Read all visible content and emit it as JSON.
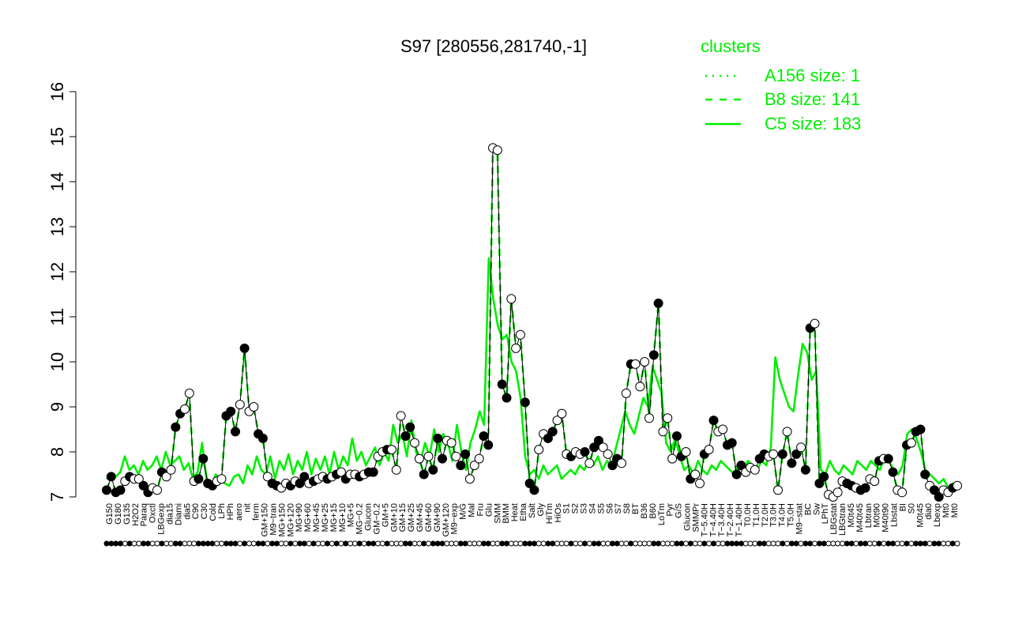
{
  "chart_data": {
    "type": "line",
    "title": "S97 [280556,281740,-1]",
    "xlabel": "",
    "ylabel": "",
    "ylim": [
      7,
      16
    ],
    "yticks": [
      7,
      8,
      9,
      10,
      11,
      12,
      13,
      14,
      15,
      16
    ],
    "xtick_labels": [
      "G150",
      "G180",
      "G135",
      "H2O2",
      "Paraq",
      "Oxctl",
      "LBGexp",
      "dia15",
      "Diami",
      "dia5",
      "C90",
      "C30",
      "Cold",
      "LPh",
      "HPh",
      "aero",
      "nit",
      "ferm",
      "GM+150",
      "M9−tran",
      "MG+150",
      "MG+120",
      "MG+90",
      "MG+60",
      "MG+45",
      "MG+25",
      "MG+15",
      "MG+10",
      "MG+5",
      "MG−0.2",
      "Glucon",
      "GM−0.2",
      "GM+5",
      "GM+10",
      "GM+15",
      "GM+25",
      "GM+45",
      "GM+60",
      "GM+90",
      "GM+120",
      "M9−exp",
      "M/G",
      "Mal",
      "Fru",
      "Glu",
      "SMM",
      "BMM",
      "Heat",
      "Etha",
      "Salt",
      "Gly",
      "HiTm",
      "HiOs",
      "S1",
      "S2",
      "S3",
      "S4",
      "S5",
      "S6",
      "S7",
      "S8",
      "BT",
      "B36",
      "B60",
      "LoTm",
      "Pyr",
      "G/S",
      "Glucon",
      "SMMPr",
      "T−5.40H",
      "T−4.40H",
      "T−3.40H",
      "T−2.40H",
      "T−1.40H",
      "T0.0H",
      "T1.0H",
      "T2.0H",
      "T3.0H",
      "T4.0H",
      "T5.0H",
      "M9−stat",
      "BC",
      "Sw",
      "LPhT",
      "LBGstat",
      "LBGtran",
      "M0t45",
      "M40t45",
      "Lbtran",
      "M0t90",
      "M40t90",
      "Lbstat",
      "BI",
      "S0",
      "M0t45",
      "dia0",
      "Lbexp",
      "Mt0",
      "Mt0"
    ],
    "legend": {
      "title": "clusters",
      "placement": "top-right",
      "entries": [
        {
          "label": "A156 size: 1",
          "style": "dotted"
        },
        {
          "label": "B8 size: 141",
          "style": "dashed"
        },
        {
          "label": "C5 size: 183",
          "style": "solid"
        }
      ]
    },
    "colors": {
      "accent": "#00ee00",
      "line": "#000000",
      "axis": "#000000"
    },
    "series": [
      {
        "name": "A156 size: 1",
        "style": "dotted",
        "values": [
          7.15,
          7.45,
          7.1,
          7.15,
          7.35,
          7.45,
          7.4,
          7.4,
          7.25,
          7.1,
          7.2,
          7.15,
          7.55,
          7.45,
          7.6,
          8.55,
          8.85,
          8.95,
          9.3,
          7.35,
          7.4,
          7.85,
          7.3,
          7.25,
          7.35,
          7.4,
          8.8,
          8.9,
          8.45,
          9.05,
          10.3,
          8.9,
          9.0,
          8.4,
          8.3,
          7.45,
          7.3,
          7.25,
          7.2,
          7.3,
          7.25,
          7.35,
          7.3,
          7.45,
          7.3,
          7.35,
          7.4,
          7.45,
          7.4,
          7.45,
          7.5,
          7.55,
          7.4,
          7.5,
          7.5,
          7.45,
          7.5,
          7.55,
          7.55,
          7.9,
          8.0,
          8.05,
          8.05,
          7.6,
          8.8,
          8.35,
          8.55,
          8.2,
          7.85,
          7.5,
          7.9,
          7.6,
          8.3,
          7.85,
          8.25,
          8.2,
          7.9,
          7.7,
          7.95,
          7.4,
          7.7,
          7.85,
          8.35,
          8.15,
          14.75,
          14.7,
          9.5,
          9.2,
          11.4,
          10.3,
          10.6,
          9.1,
          7.3,
          7.15,
          8.05,
          8.4,
          8.3,
          8.45,
          8.7,
          8.85,
          7.95,
          7.9,
          8.0,
          7.95,
          8.0,
          7.75,
          8.1,
          8.25,
          8.1,
          7.95,
          7.7,
          7.85,
          7.75,
          9.3,
          9.95,
          9.95,
          9.45,
          10.0,
          8.75,
          10.15,
          11.3,
          8.45,
          8.75,
          7.85,
          8.35,
          7.9,
          8.0,
          7.4,
          7.5,
          7.3,
          7.95,
          8.05,
          8.7,
          8.45,
          8.5,
          8.15,
          8.2,
          7.5,
          7.7,
          7.55,
          7.65,
          7.6,
          7.85,
          7.95,
          7.9,
          7.95,
          7.15,
          7.95,
          8.45,
          7.75,
          7.95,
          8.1,
          7.6,
          10.75,
          10.85,
          7.3,
          7.45,
          7.05,
          7.0,
          7.1,
          7.35,
          7.3,
          7.25,
          7.2,
          7.15,
          7.2,
          7.4,
          7.35,
          7.8,
          7.85,
          7.85,
          7.55,
          7.15,
          7.1,
          8.15,
          8.2,
          8.45,
          8.5,
          7.5,
          7.25,
          7.15,
          7.0,
          7.15,
          7.1,
          7.2,
          7.25
        ],
        "filled": [
          1,
          1,
          1,
          1,
          0,
          1,
          0,
          0,
          1,
          1,
          0,
          0,
          1,
          0,
          0,
          1,
          1,
          0,
          0,
          0,
          1,
          1,
          1,
          1,
          0,
          0,
          1,
          1,
          1,
          0,
          1,
          0,
          0,
          1,
          1,
          0,
          1,
          1,
          0,
          0,
          1,
          0,
          1,
          1,
          0,
          1,
          0,
          0,
          1,
          0,
          1,
          0,
          1,
          0,
          0,
          1,
          0,
          1,
          1,
          0,
          0,
          1,
          0,
          0,
          0,
          1,
          1,
          0,
          0,
          1,
          0,
          1,
          1,
          1,
          0,
          0,
          0,
          1,
          1,
          0,
          0,
          0,
          1,
          1,
          0,
          0,
          1,
          1,
          0,
          0,
          0,
          1,
          1,
          1,
          0,
          0,
          1,
          1,
          0,
          0,
          0,
          1,
          0,
          0,
          1,
          0,
          1,
          1,
          0,
          0,
          1,
          1,
          0,
          0,
          1,
          0,
          0,
          0,
          0,
          1,
          1,
          0,
          0,
          0,
          1,
          1,
          0,
          1,
          0,
          0,
          1,
          0,
          1,
          0,
          0,
          1,
          1,
          1,
          1,
          0,
          0,
          0,
          1,
          1,
          0,
          0,
          0,
          1,
          0,
          1,
          1,
          0,
          1,
          1,
          0,
          1,
          1,
          0,
          0,
          0,
          0,
          1,
          1,
          0,
          1,
          1,
          0,
          0,
          1,
          0,
          1,
          1,
          0,
          0,
          1,
          0,
          1,
          1,
          1,
          0,
          1,
          1,
          0,
          0,
          1,
          0,
          0,
          1,
          1,
          1,
          0,
          0
        ]
      },
      {
        "name": "B8 size: 141",
        "style": "dashed",
        "values": [
          7.15,
          7.45,
          7.1,
          7.15,
          7.35,
          7.45,
          7.4,
          7.4,
          7.25,
          7.1,
          7.2,
          7.15,
          7.55,
          7.45,
          7.6,
          8.55,
          8.85,
          8.95,
          9.3,
          7.35,
          7.4,
          7.85,
          7.3,
          7.25,
          7.35,
          7.4,
          8.8,
          8.9,
          8.45,
          9.05,
          10.3,
          8.9,
          9.0,
          8.4,
          8.3,
          7.45,
          7.3,
          7.25,
          7.2,
          7.3,
          7.25,
          7.35,
          7.3,
          7.45,
          7.3,
          7.35,
          7.4,
          7.45,
          7.4,
          7.45,
          7.5,
          7.55,
          7.4,
          7.5,
          7.5,
          7.45,
          7.5,
          7.55,
          7.55,
          7.9,
          8.0,
          8.05,
          8.05,
          7.6,
          8.8,
          8.35,
          8.55,
          8.2,
          7.85,
          7.5,
          7.9,
          7.6,
          8.3,
          7.85,
          8.25,
          8.2,
          7.9,
          7.7,
          7.95,
          7.4,
          7.7,
          7.85,
          8.35,
          8.15,
          14.75,
          14.7,
          9.5,
          9.2,
          11.4,
          10.3,
          10.6,
          9.1,
          7.3,
          7.15,
          8.05,
          8.4,
          8.3,
          8.45,
          8.7,
          8.85,
          7.95,
          7.9,
          8.0,
          7.95,
          8.0,
          7.75,
          8.1,
          8.25,
          8.1,
          7.95,
          7.7,
          7.85,
          7.75,
          9.3,
          9.95,
          9.95,
          9.45,
          10.0,
          8.75,
          10.15,
          11.3,
          8.45,
          8.75,
          7.85,
          8.35,
          7.9,
          8.0,
          7.4,
          7.5,
          7.3,
          7.95,
          8.05,
          8.7,
          8.45,
          8.5,
          8.15,
          8.2,
          7.5,
          7.7,
          7.55,
          7.65,
          7.6,
          7.85,
          7.95,
          7.9,
          7.95,
          7.15,
          7.95,
          8.45,
          7.75,
          7.95,
          8.1,
          7.6,
          10.75,
          10.85,
          7.3,
          7.45,
          7.05,
          7.0,
          7.1,
          7.35,
          7.3,
          7.25,
          7.2,
          7.15,
          7.2,
          7.4,
          7.35,
          7.8,
          7.85,
          7.85,
          7.55,
          7.15,
          7.1,
          8.15,
          8.2,
          8.45,
          8.5,
          7.5,
          7.25,
          7.15,
          7.0,
          7.15,
          7.1,
          7.2,
          7.25
        ]
      },
      {
        "name": "C5 size: 183",
        "style": "solid",
        "values": [
          7.4,
          7.5,
          7.45,
          7.55,
          7.9,
          7.6,
          7.7,
          7.5,
          7.8,
          7.6,
          7.7,
          7.9,
          7.6,
          8.0,
          7.7,
          7.8,
          7.9,
          7.6,
          7.75,
          7.4,
          7.55,
          8.2,
          7.35,
          7.25,
          7.5,
          7.4,
          7.3,
          7.25,
          7.45,
          7.5,
          7.3,
          7.7,
          7.5,
          7.9,
          7.6,
          7.5,
          7.9,
          7.4,
          7.8,
          7.6,
          7.95,
          7.5,
          7.8,
          7.6,
          8.0,
          7.5,
          7.85,
          7.6,
          7.9,
          7.5,
          8.0,
          7.6,
          7.9,
          7.7,
          8.3,
          7.8,
          8.0,
          7.7,
          7.9,
          8.1,
          7.7,
          8.0,
          7.8,
          8.6,
          8.2,
          8.4,
          7.9,
          8.7,
          8.0,
          7.8,
          8.2,
          7.9,
          8.5,
          8.0,
          8.4,
          8.2,
          7.8,
          8.6,
          8.0,
          7.6,
          8.2,
          8.5,
          8.9,
          8.6,
          12.3,
          11.4,
          10.8,
          10.5,
          10.6,
          10.0,
          9.8,
          9.2,
          7.9,
          7.5,
          7.6,
          7.4,
          7.7,
          7.5,
          7.6,
          7.7,
          7.4,
          7.5,
          7.6,
          7.5,
          7.7,
          7.6,
          7.8,
          7.7,
          7.9,
          7.6,
          7.8,
          7.7,
          8.1,
          8.5,
          8.9,
          8.6,
          8.4,
          8.8,
          9.2,
          9.0,
          9.9,
          9.6,
          9.3,
          8.2,
          8.0,
          8.3,
          7.9,
          7.6,
          7.7,
          7.5,
          7.8,
          7.6,
          7.5,
          7.7,
          7.6,
          7.8,
          7.7,
          7.6,
          7.5,
          7.7,
          7.6,
          7.8,
          7.7,
          7.6,
          7.8,
          7.7,
          8.1,
          10.1,
          9.6,
          9.3,
          9.0,
          8.9,
          9.7,
          10.4,
          10.2,
          9.6,
          9.8,
          7.6,
          7.5,
          7.8,
          7.6,
          7.5,
          7.7,
          7.6,
          7.5,
          7.8,
          7.7,
          7.6,
          7.8,
          7.7,
          7.6,
          7.9,
          7.8,
          7.6,
          7.5,
          7.7,
          8.4,
          8.5,
          8.3,
          8.0,
          7.6,
          7.5,
          7.4,
          7.3,
          7.4,
          7.2,
          7.3,
          7.25
        ]
      }
    ]
  }
}
